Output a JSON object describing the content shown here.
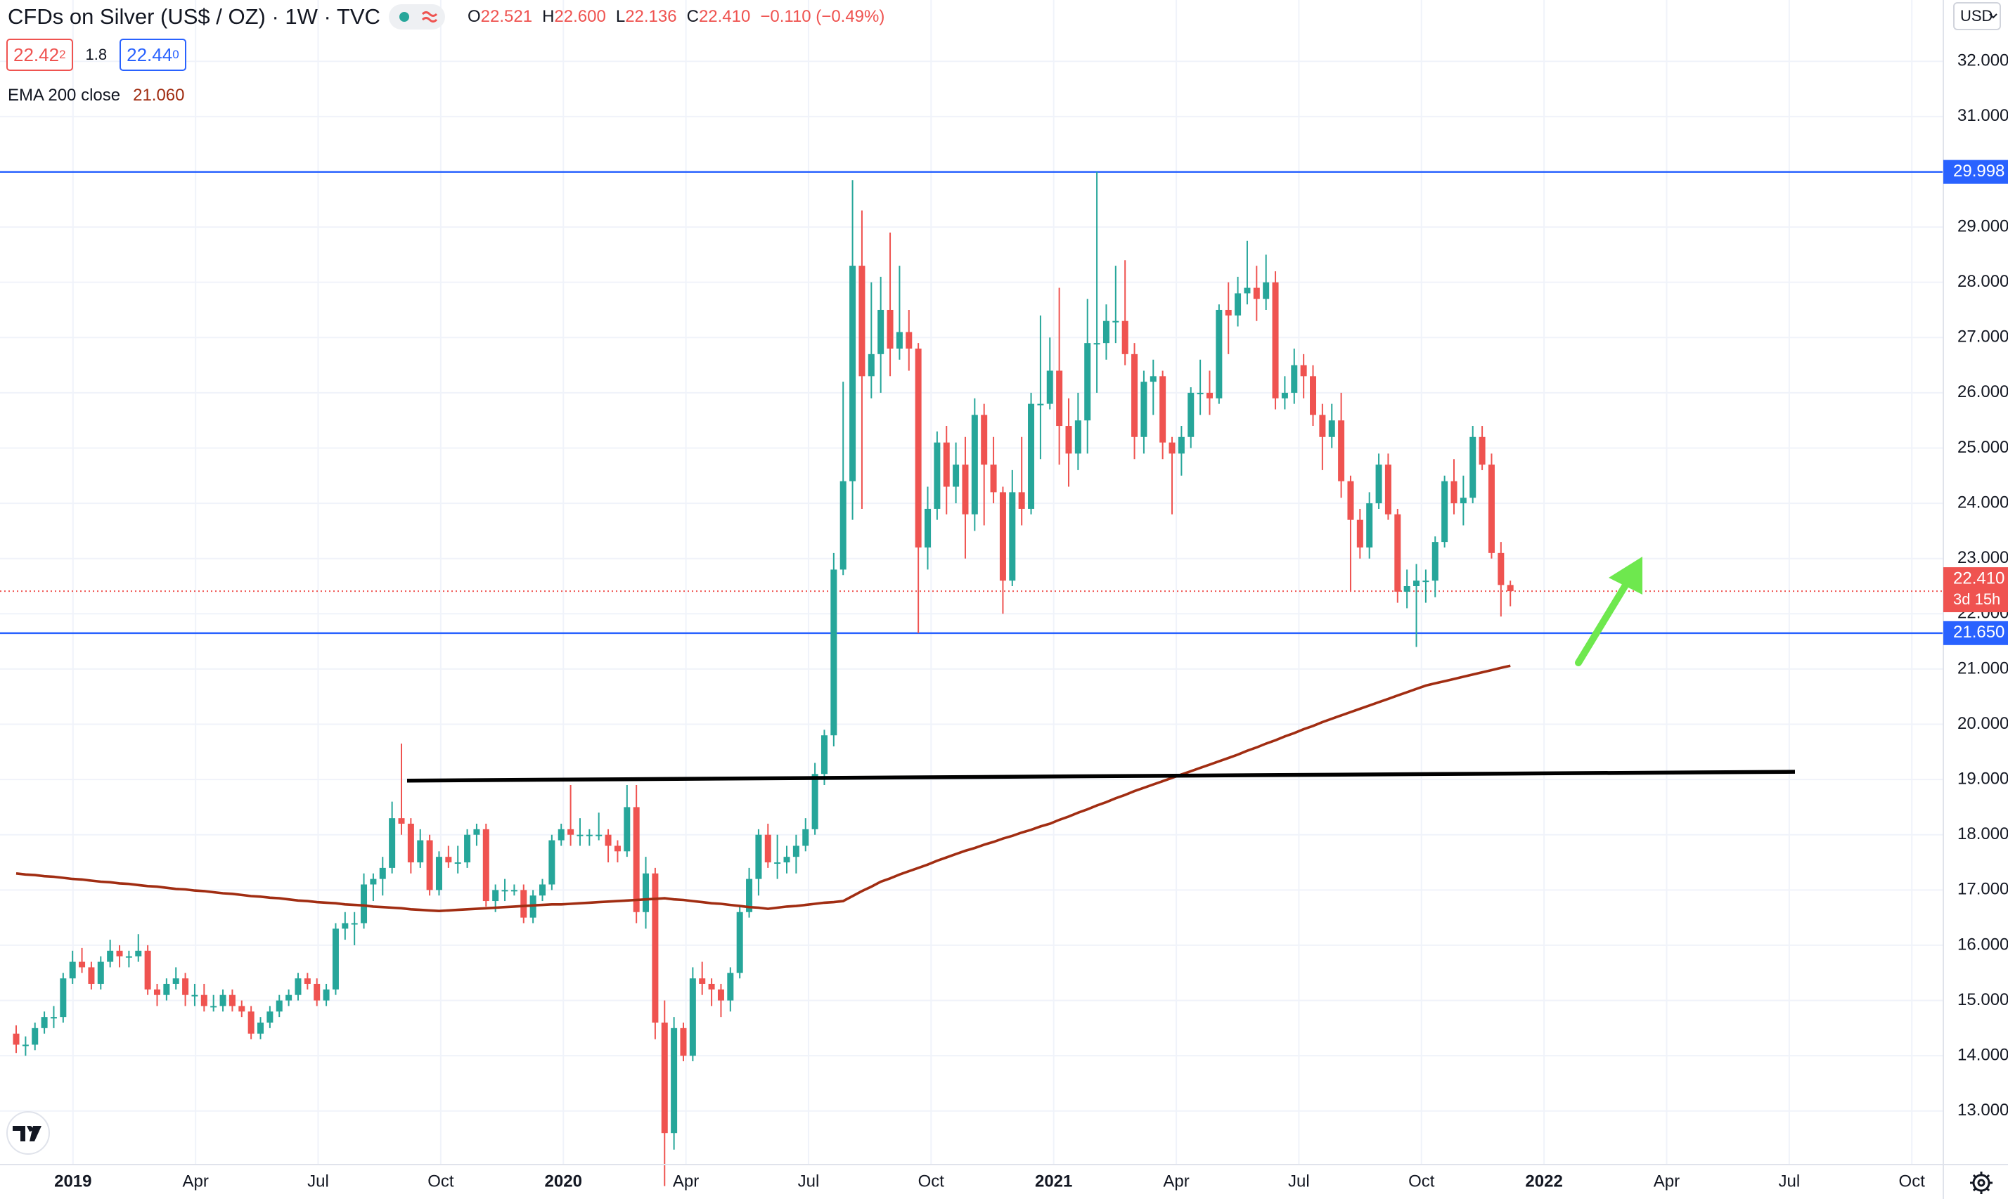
{
  "header": {
    "title": "CFDs on Silver (US$ / OZ) · 1W · TVC",
    "ohlc": [
      {
        "key": "O",
        "value": "22.521"
      },
      {
        "key": "H",
        "value": "22.600"
      },
      {
        "key": "L",
        "value": "22.136"
      },
      {
        "key": "C",
        "value": "22.410"
      }
    ],
    "change": "−0.110 (−0.49%)",
    "bid": "22.42",
    "bid_tail": "2",
    "spread": "1.8",
    "ask": "22.44",
    "ask_tail": "0",
    "currency": "USD"
  },
  "chart_data": {
    "type": "candlestick",
    "up_color": "#26a69a",
    "down_color": "#ef5350",
    "grid": true,
    "ylim": [
      12.03,
      33.11
    ],
    "yticks": [
      {
        "value": 13,
        "label": "13.000"
      },
      {
        "value": 14,
        "label": "14.000"
      },
      {
        "value": 15,
        "label": "15.000"
      },
      {
        "value": 16,
        "label": "16.000"
      },
      {
        "value": 17,
        "label": "17.000"
      },
      {
        "value": 18,
        "label": "18.000"
      },
      {
        "value": 19,
        "label": "19.000"
      },
      {
        "value": 20,
        "label": "20.000"
      },
      {
        "value": 21,
        "label": "21.000"
      },
      {
        "value": 22,
        "label": "22.000"
      },
      {
        "value": 23,
        "label": "23.000"
      },
      {
        "value": 24,
        "label": "24.000"
      },
      {
        "value": 25,
        "label": "25.000"
      },
      {
        "value": 26,
        "label": "26.000"
      },
      {
        "value": 27,
        "label": "27.000"
      },
      {
        "value": 28,
        "label": "28.000"
      },
      {
        "value": 29,
        "label": "29.000"
      },
      {
        "value": 30,
        "label": "30.000"
      },
      {
        "value": 31,
        "label": "31.000"
      },
      {
        "value": 32,
        "label": "32.000"
      }
    ],
    "xticks": [
      "2019",
      "Apr",
      "Jul",
      "Oct",
      "2020",
      "Apr",
      "Jul",
      "Oct",
      "2021",
      "Apr",
      "Jul",
      "Oct",
      "2022",
      "Apr",
      "Jul",
      "Oct"
    ],
    "candles": [
      [
        14.4,
        14.55,
        14.05,
        14.2
      ],
      [
        14.2,
        14.35,
        14.0,
        14.2
      ],
      [
        14.2,
        14.6,
        14.1,
        14.5
      ],
      [
        14.5,
        14.8,
        14.4,
        14.7
      ],
      [
        14.7,
        14.9,
        14.5,
        14.7
      ],
      [
        14.7,
        15.5,
        14.6,
        15.4
      ],
      [
        15.4,
        15.9,
        15.3,
        15.7
      ],
      [
        15.7,
        15.95,
        15.5,
        15.6
      ],
      [
        15.6,
        15.7,
        15.2,
        15.3
      ],
      [
        15.3,
        15.8,
        15.2,
        15.7
      ],
      [
        15.7,
        16.1,
        15.6,
        15.9
      ],
      [
        15.9,
        16.0,
        15.6,
        15.8
      ],
      [
        15.8,
        15.9,
        15.6,
        15.8
      ],
      [
        15.8,
        16.2,
        15.7,
        15.9
      ],
      [
        15.9,
        16.0,
        15.1,
        15.2
      ],
      [
        15.2,
        15.3,
        14.9,
        15.1
      ],
      [
        15.1,
        15.4,
        15.0,
        15.3
      ],
      [
        15.3,
        15.6,
        15.2,
        15.4
      ],
      [
        15.4,
        15.5,
        14.9,
        15.1
      ],
      [
        15.1,
        15.3,
        14.9,
        15.1
      ],
      [
        15.1,
        15.3,
        14.8,
        14.9
      ],
      [
        14.9,
        15.1,
        14.8,
        14.9
      ],
      [
        14.9,
        15.2,
        14.8,
        15.1
      ],
      [
        15.1,
        15.2,
        14.8,
        14.9
      ],
      [
        14.9,
        15.0,
        14.7,
        14.8
      ],
      [
        14.8,
        14.9,
        14.3,
        14.4
      ],
      [
        14.4,
        14.7,
        14.3,
        14.6
      ],
      [
        14.6,
        14.9,
        14.5,
        14.8
      ],
      [
        14.8,
        15.1,
        14.7,
        15.0
      ],
      [
        15.0,
        15.2,
        14.9,
        15.1
      ],
      [
        15.1,
        15.5,
        15.0,
        15.4
      ],
      [
        15.4,
        15.5,
        15.2,
        15.3
      ],
      [
        15.3,
        15.4,
        14.9,
        15.0
      ],
      [
        15.0,
        15.3,
        14.9,
        15.2
      ],
      [
        15.2,
        16.4,
        15.1,
        16.3
      ],
      [
        16.3,
        16.6,
        16.1,
        16.4
      ],
      [
        16.4,
        16.6,
        16.0,
        16.4
      ],
      [
        16.4,
        17.3,
        16.3,
        17.1
      ],
      [
        17.1,
        17.3,
        16.8,
        17.2
      ],
      [
        17.2,
        17.6,
        16.9,
        17.4
      ],
      [
        17.4,
        18.6,
        17.3,
        18.3
      ],
      [
        18.3,
        19.65,
        18.0,
        18.2
      ],
      [
        18.2,
        18.3,
        17.3,
        17.5
      ],
      [
        17.5,
        18.1,
        17.4,
        17.9
      ],
      [
        17.9,
        18.0,
        16.9,
        17.0
      ],
      [
        17.0,
        17.7,
        16.9,
        17.6
      ],
      [
        17.6,
        17.8,
        17.4,
        17.5
      ],
      [
        17.5,
        17.8,
        17.3,
        17.5
      ],
      [
        17.5,
        18.1,
        17.4,
        18.0
      ],
      [
        18.0,
        18.2,
        17.8,
        18.1
      ],
      [
        18.1,
        18.2,
        16.7,
        16.8
      ],
      [
        16.8,
        17.1,
        16.6,
        17.0
      ],
      [
        17.0,
        17.2,
        16.8,
        17.0
      ],
      [
        17.0,
        17.1,
        16.9,
        17.0
      ],
      [
        17.0,
        17.1,
        16.4,
        16.5
      ],
      [
        16.5,
        17.0,
        16.4,
        16.9
      ],
      [
        16.9,
        17.2,
        16.8,
        17.1
      ],
      [
        17.1,
        18.0,
        17.0,
        17.9
      ],
      [
        17.9,
        18.2,
        17.8,
        18.1
      ],
      [
        18.1,
        18.9,
        17.8,
        18.0
      ],
      [
        18.0,
        18.3,
        17.8,
        18.0
      ],
      [
        18.0,
        18.1,
        17.8,
        18.0
      ],
      [
        18.0,
        18.4,
        17.9,
        18.0
      ],
      [
        18.0,
        18.1,
        17.5,
        17.8
      ],
      [
        17.8,
        17.9,
        17.5,
        17.7
      ],
      [
        17.7,
        18.9,
        17.6,
        18.5
      ],
      [
        18.5,
        18.9,
        16.4,
        16.6
      ],
      [
        16.6,
        17.6,
        16.3,
        17.3
      ],
      [
        17.3,
        17.4,
        14.3,
        14.6
      ],
      [
        14.6,
        15.0,
        11.64,
        12.6
      ],
      [
        12.6,
        14.7,
        12.3,
        14.5
      ],
      [
        14.5,
        14.6,
        13.9,
        14.0
      ],
      [
        14.0,
        15.6,
        13.9,
        15.4
      ],
      [
        15.4,
        15.7,
        15.1,
        15.3
      ],
      [
        15.3,
        15.4,
        14.9,
        15.2
      ],
      [
        15.2,
        15.3,
        14.7,
        15.0
      ],
      [
        15.0,
        15.6,
        14.8,
        15.5
      ],
      [
        15.5,
        16.7,
        15.4,
        16.6
      ],
      [
        16.6,
        17.4,
        16.5,
        17.2
      ],
      [
        17.2,
        18.1,
        16.9,
        18.0
      ],
      [
        18.0,
        18.2,
        17.4,
        17.5
      ],
      [
        17.5,
        18.0,
        17.2,
        17.5
      ],
      [
        17.5,
        17.8,
        17.3,
        17.6
      ],
      [
        17.6,
        18.0,
        17.3,
        17.8
      ],
      [
        17.8,
        18.3,
        17.7,
        18.1
      ],
      [
        18.1,
        19.3,
        18.0,
        19.1
      ],
      [
        19.1,
        19.9,
        18.9,
        19.8
      ],
      [
        19.8,
        23.1,
        19.6,
        22.8
      ],
      [
        22.8,
        26.2,
        22.7,
        24.4
      ],
      [
        24.4,
        29.85,
        23.7,
        28.3
      ],
      [
        28.3,
        29.3,
        23.9,
        26.3
      ],
      [
        26.3,
        28.0,
        25.9,
        26.7
      ],
      [
        26.7,
        28.1,
        26.0,
        27.5
      ],
      [
        27.5,
        28.9,
        26.3,
        26.8
      ],
      [
        26.8,
        28.3,
        26.6,
        27.1
      ],
      [
        27.1,
        27.5,
        26.4,
        26.8
      ],
      [
        26.8,
        26.9,
        21.65,
        23.2
      ],
      [
        23.2,
        24.3,
        22.8,
        23.9
      ],
      [
        23.9,
        25.3,
        23.7,
        25.1
      ],
      [
        25.1,
        25.4,
        23.8,
        24.3
      ],
      [
        24.3,
        25.1,
        24.0,
        24.7
      ],
      [
        24.7,
        25.2,
        23.0,
        23.8
      ],
      [
        23.8,
        25.9,
        23.5,
        25.6
      ],
      [
        25.6,
        25.8,
        23.6,
        24.7
      ],
      [
        24.7,
        25.2,
        24.0,
        24.2
      ],
      [
        24.2,
        24.3,
        22.0,
        22.6
      ],
      [
        22.6,
        24.6,
        22.5,
        24.2
      ],
      [
        24.2,
        25.2,
        23.6,
        23.9
      ],
      [
        23.9,
        26.0,
        23.8,
        25.8
      ],
      [
        25.8,
        27.4,
        24.8,
        25.8
      ],
      [
        25.8,
        27.0,
        25.7,
        26.4
      ],
      [
        26.4,
        27.9,
        24.7,
        25.4
      ],
      [
        25.4,
        25.9,
        24.3,
        24.9
      ],
      [
        24.9,
        26.0,
        24.6,
        25.5
      ],
      [
        25.5,
        27.7,
        24.9,
        26.9
      ],
      [
        26.9,
        30.0,
        26.0,
        26.9
      ],
      [
        26.9,
        27.6,
        26.6,
        27.3
      ],
      [
        27.3,
        28.3,
        26.9,
        27.3
      ],
      [
        27.3,
        28.4,
        26.5,
        26.7
      ],
      [
        26.7,
        26.9,
        24.8,
        25.2
      ],
      [
        25.2,
        26.4,
        24.9,
        26.2
      ],
      [
        26.2,
        26.6,
        25.6,
        26.3
      ],
      [
        26.3,
        26.4,
        24.8,
        25.1
      ],
      [
        25.1,
        25.2,
        23.8,
        24.9
      ],
      [
        24.9,
        25.4,
        24.5,
        25.2
      ],
      [
        25.2,
        26.1,
        25.0,
        26.0
      ],
      [
        26.0,
        26.6,
        25.6,
        26.0
      ],
      [
        26.0,
        26.4,
        25.6,
        25.9
      ],
      [
        25.9,
        27.6,
        25.8,
        27.5
      ],
      [
        27.5,
        28.0,
        26.7,
        27.4
      ],
      [
        27.4,
        28.1,
        27.2,
        27.8
      ],
      [
        27.8,
        28.75,
        27.6,
        27.9
      ],
      [
        27.9,
        28.3,
        27.3,
        27.7
      ],
      [
        27.7,
        28.5,
        27.5,
        28.0
      ],
      [
        28.0,
        28.2,
        25.7,
        25.9
      ],
      [
        25.9,
        26.3,
        25.7,
        26.0
      ],
      [
        26.0,
        26.8,
        25.8,
        26.5
      ],
      [
        26.5,
        26.7,
        25.9,
        26.3
      ],
      [
        26.3,
        26.5,
        25.4,
        25.6
      ],
      [
        25.6,
        25.8,
        24.6,
        25.2
      ],
      [
        25.2,
        25.8,
        25.0,
        25.5
      ],
      [
        25.5,
        26.0,
        24.1,
        24.4
      ],
      [
        24.4,
        24.5,
        22.4,
        23.7
      ],
      [
        23.7,
        23.9,
        23.0,
        23.2
      ],
      [
        23.2,
        24.2,
        23.0,
        24.0
      ],
      [
        24.0,
        24.9,
        23.9,
        24.7
      ],
      [
        24.7,
        24.9,
        23.7,
        23.8
      ],
      [
        23.8,
        23.9,
        22.2,
        22.4
      ],
      [
        22.4,
        22.8,
        22.1,
        22.5
      ],
      [
        22.5,
        22.9,
        21.4,
        22.6
      ],
      [
        22.6,
        22.8,
        22.2,
        22.6
      ],
      [
        22.6,
        23.4,
        22.3,
        23.3
      ],
      [
        23.3,
        24.5,
        23.2,
        24.4
      ],
      [
        24.4,
        24.8,
        23.8,
        24.0
      ],
      [
        24.0,
        24.5,
        23.6,
        24.1
      ],
      [
        24.1,
        25.4,
        24.0,
        25.2
      ],
      [
        25.2,
        25.4,
        24.6,
        24.7
      ],
      [
        24.7,
        24.9,
        23.0,
        23.1
      ],
      [
        23.1,
        23.3,
        21.95,
        22.521
      ],
      [
        22.521,
        22.6,
        22.136,
        22.41
      ]
    ],
    "ema": {
      "label": "EMA 200 close",
      "value_label": "21.060",
      "color": "#a12d12",
      "values": [
        17.3,
        17.28,
        17.27,
        17.25,
        17.24,
        17.22,
        17.2,
        17.19,
        17.17,
        17.15,
        17.14,
        17.12,
        17.11,
        17.09,
        17.07,
        17.06,
        17.04,
        17.02,
        17.01,
        16.99,
        16.98,
        16.96,
        16.94,
        16.93,
        16.91,
        16.89,
        16.88,
        16.86,
        16.85,
        16.83,
        16.81,
        16.8,
        16.78,
        16.77,
        16.76,
        16.74,
        16.73,
        16.72,
        16.7,
        16.69,
        16.68,
        16.67,
        16.65,
        16.64,
        16.63,
        16.62,
        16.63,
        16.64,
        16.65,
        16.66,
        16.67,
        16.68,
        16.69,
        16.7,
        16.71,
        16.72,
        16.73,
        16.74,
        16.74,
        16.75,
        16.76,
        16.77,
        16.78,
        16.79,
        16.8,
        16.81,
        16.82,
        16.83,
        16.84,
        16.85,
        16.83,
        16.82,
        16.8,
        16.78,
        16.76,
        16.75,
        16.73,
        16.71,
        16.69,
        16.68,
        16.66,
        16.68,
        16.7,
        16.71,
        16.73,
        16.75,
        16.77,
        16.78,
        16.8,
        16.89,
        16.98,
        17.06,
        17.15,
        17.21,
        17.28,
        17.34,
        17.4,
        17.46,
        17.53,
        17.59,
        17.65,
        17.71,
        17.76,
        17.82,
        17.87,
        17.93,
        17.98,
        18.04,
        18.09,
        18.15,
        18.2,
        18.27,
        18.33,
        18.4,
        18.46,
        18.53,
        18.59,
        18.66,
        18.72,
        18.79,
        18.85,
        18.91,
        18.97,
        19.03,
        19.09,
        19.15,
        19.21,
        19.27,
        19.33,
        19.39,
        19.45,
        19.52,
        19.58,
        19.65,
        19.71,
        19.78,
        19.84,
        19.91,
        19.97,
        20.04,
        20.1,
        20.16,
        20.22,
        20.28,
        20.34,
        20.4,
        20.46,
        20.52,
        20.58,
        20.64,
        20.7,
        20.74,
        20.78,
        20.82,
        20.86,
        20.9,
        20.94,
        20.98,
        21.02,
        21.06
      ]
    },
    "hlines": [
      {
        "value": 29.998,
        "label": "29.998",
        "color": "#2962ff"
      },
      {
        "value": 21.65,
        "label": "21.650",
        "color": "#2962ff"
      }
    ],
    "last": {
      "value": 22.41,
      "label": "22.410",
      "countdown": "3d 15h",
      "color": "#ef5350"
    },
    "trendline": {
      "color": "#000000",
      "values": [
        18.98,
        19.14
      ]
    }
  }
}
